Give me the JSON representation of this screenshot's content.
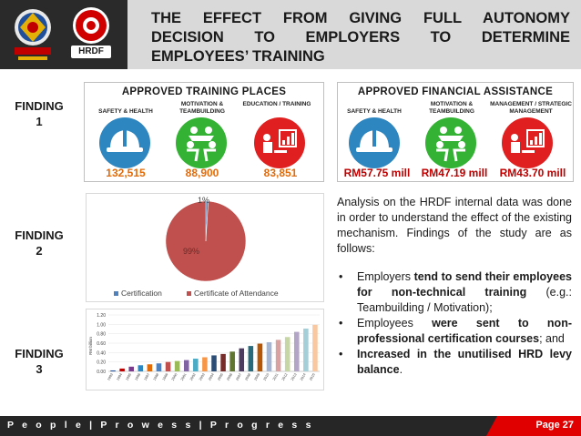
{
  "header": {
    "title_lines": [
      "THE EFFECT FROM GIVING FULL AUTONOMY",
      "DECISION TO EMPLOYERS TO DETERMINE",
      "EMPLOYEES’ TRAINING"
    ],
    "logo_right_text": "HRDF"
  },
  "findings": [
    {
      "label_line1": "FINDING",
      "label_line2": "1"
    },
    {
      "label_line1": "FINDING",
      "label_line2": "2"
    },
    {
      "label_line1": "FINDING",
      "label_line2": "3"
    }
  ],
  "training_places": {
    "title": "APPROVED TRAINING PLACES",
    "items": [
      {
        "category": "SAFETY & HEALTH",
        "value": "132,515",
        "color": "#2e86c1",
        "icon": "hard-hat-icon"
      },
      {
        "category": "MOTIVATION & TEAMBUILDING",
        "value": "88,900",
        "color": "#33b233",
        "icon": "teambuilding-icon"
      },
      {
        "category": "EDUCATION / TRAINING",
        "value": "83,851",
        "color": "#e02020",
        "icon": "presentation-icon"
      }
    ]
  },
  "financial_assistance": {
    "title": "APPROVED FINANCIAL ASSISTANCE",
    "items": [
      {
        "category": "SAFETY & HEALTH",
        "value": "RM57.75 mill",
        "color": "#2e86c1",
        "icon": "hard-hat-icon"
      },
      {
        "category": "MOTIVATION & TEAMBUILDING",
        "value": "RM47.19 mill",
        "color": "#33b233",
        "icon": "teambuilding-icon"
      },
      {
        "category": "MANAGEMENT / STRATEGIC MANAGEMENT",
        "value": "RM43.70 mill",
        "color": "#e02020",
        "icon": "presentation-icon"
      }
    ]
  },
  "chart_data": [
    {
      "type": "pie",
      "labels": [
        "Certification",
        "Certificate of Attendance"
      ],
      "values": [
        1,
        99
      ],
      "data_labels": [
        "1%",
        "99%"
      ],
      "colors": [
        "#4f81bd",
        "#c0504d"
      ],
      "legend": "bottom"
    },
    {
      "type": "bar",
      "categories": [
        "1993",
        "1994",
        "1995",
        "1996",
        "1997",
        "1998",
        "1999",
        "2000",
        "2001",
        "2002",
        "2003",
        "2004",
        "2005",
        "2006",
        "2007",
        "2008",
        "2009",
        "2010",
        "2011",
        "2012",
        "2013",
        "2014",
        "2015"
      ],
      "values": [
        0.02,
        0.06,
        0.1,
        0.13,
        0.15,
        0.17,
        0.2,
        0.22,
        0.24,
        0.27,
        0.3,
        0.34,
        0.37,
        0.42,
        0.49,
        0.54,
        0.59,
        0.62,
        0.67,
        0.73,
        0.84,
        0.91,
        0.99
      ],
      "ylabel": "RM billion",
      "ylim": [
        0,
        1.2
      ],
      "yticks": [
        "0.00",
        "0.20",
        "0.40",
        "0.60",
        "0.80",
        "1.00",
        "1.20"
      ]
    }
  ],
  "analysis": {
    "intro": "Analysis on the HRDF internal data was done in order to understand the effect of the existing mechanism. Findings of the study are as follows:",
    "bullets": [
      {
        "pre": "Employers ",
        "bold": "tend to send their employees for non-technical training",
        "post": " (e.g.: Teambuilding / Motivation);"
      },
      {
        "pre": "Employees ",
        "bold": "were sent to non-professional certification courses",
        "post": "; and"
      },
      {
        "pre": "",
        "bold": "Increased in the unutilised HRD levy balance",
        "post": "."
      }
    ],
    "bullet_char": "•"
  },
  "footer": {
    "tagline": "P e o p l e | P r o w e s s | P r o g r e s s",
    "page": "Page 27"
  }
}
